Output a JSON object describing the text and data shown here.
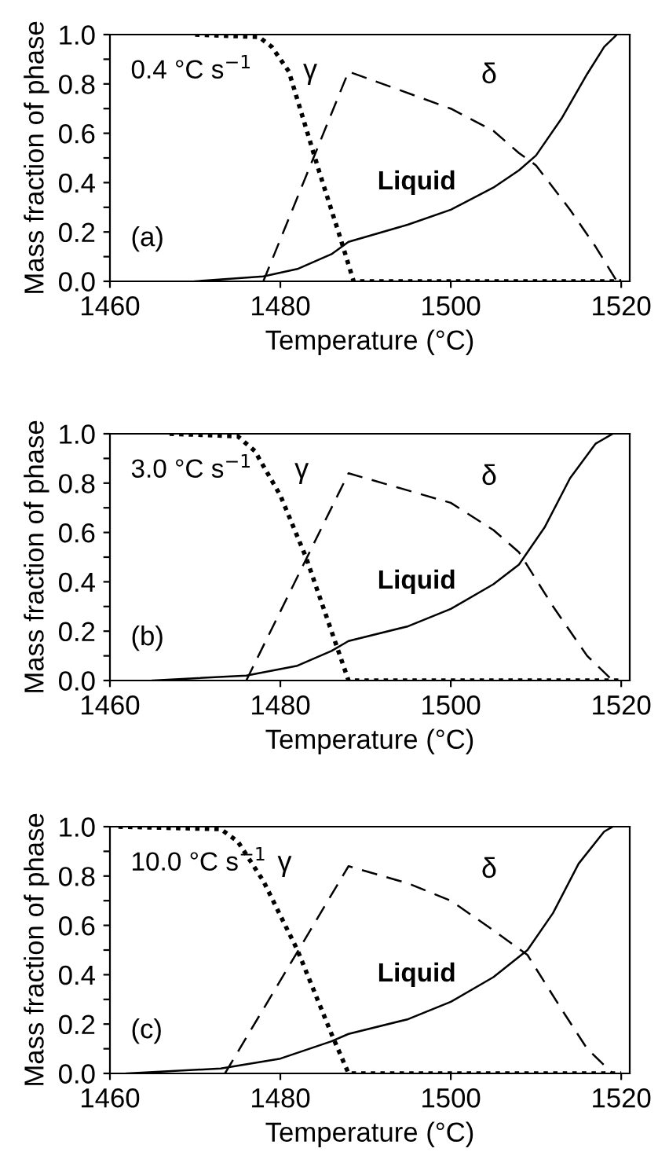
{
  "chart_data": [
    {
      "type": "line",
      "xlabel": "Temperature (°C)",
      "ylabel": "Mass fraction of phase",
      "xlim": [
        1460,
        1521
      ],
      "xticks": [
        1460,
        1480,
        1500,
        1520
      ],
      "ylim": [
        0,
        1
      ],
      "yticks": [
        {
          "value": 0,
          "label": "0.0"
        },
        {
          "value": 0.1,
          "label": null
        },
        {
          "value": 0.2,
          "label": "0.2"
        },
        {
          "value": 0.3,
          "label": null
        },
        {
          "value": 0.4,
          "label": "0.4"
        },
        {
          "value": 0.5,
          "label": null
        },
        {
          "value": 0.6,
          "label": "0.6"
        },
        {
          "value": 0.7,
          "label": null
        },
        {
          "value": 0.8,
          "label": "0.8"
        },
        {
          "value": 0.9,
          "label": null
        },
        {
          "value": 1.0,
          "label": "1.0"
        }
      ],
      "grid": false,
      "legend": false,
      "annotations": [
        "0.4 °C s$^{−1}$",
        "(a)"
      ],
      "series": [
        {
          "name": "γ",
          "color": "#000000",
          "line_style": "dotted",
          "x": [
            1470,
            1477.5,
            1479,
            1481,
            1484.6,
            1487,
            1488.6,
            1520
          ],
          "values": [
            1.0,
            0.99,
            0.95,
            0.85,
            0.44,
            0.18,
            0.0,
            0.0
          ]
        },
        {
          "name": "δ",
          "color": "#000000",
          "line_style": "dashed",
          "x": [
            1478,
            1488,
            1500,
            1505,
            1508,
            1510,
            1514,
            1517,
            1519.5
          ],
          "values": [
            0.0,
            0.85,
            0.7,
            0.61,
            0.52,
            0.47,
            0.29,
            0.14,
            0.0
          ]
        },
        {
          "name": "Liquid",
          "color": "#000000",
          "line_style": "solid",
          "x": [
            1470,
            1478,
            1482,
            1486,
            1488,
            1490,
            1495,
            1500,
            1505,
            1508,
            1510,
            1513,
            1516,
            1518,
            1519.5
          ],
          "values": [
            0.0,
            0.02,
            0.05,
            0.11,
            0.16,
            0.18,
            0.23,
            0.29,
            0.38,
            0.45,
            0.51,
            0.66,
            0.84,
            0.95,
            1.0
          ]
        }
      ]
    },
    {
      "type": "line",
      "xlabel": "Temperature (°C)",
      "ylabel": "Mass fraction of phase",
      "xlim": [
        1460,
        1521
      ],
      "xticks": [
        1460,
        1480,
        1500,
        1520
      ],
      "ylim": [
        0,
        1
      ],
      "yticks": [
        {
          "value": 0,
          "label": "0.0"
        },
        {
          "value": 0.1,
          "label": null
        },
        {
          "value": 0.2,
          "label": "0.2"
        },
        {
          "value": 0.3,
          "label": null
        },
        {
          "value": 0.4,
          "label": "0.4"
        },
        {
          "value": 0.5,
          "label": null
        },
        {
          "value": 0.6,
          "label": "0.6"
        },
        {
          "value": 0.7,
          "label": null
        },
        {
          "value": 0.8,
          "label": "0.8"
        },
        {
          "value": 0.9,
          "label": null
        },
        {
          "value": 1.0,
          "label": "1.0"
        }
      ],
      "grid": false,
      "legend": false,
      "annotations": [
        "3.0 °C s$^{−1}$",
        "(b)"
      ],
      "series": [
        {
          "name": "γ",
          "color": "#000000",
          "line_style": "dotted",
          "x": [
            1467,
            1475,
            1477,
            1480,
            1483,
            1486,
            1488,
            1520
          ],
          "values": [
            1.0,
            0.99,
            0.93,
            0.75,
            0.5,
            0.2,
            0.0,
            0.0
          ]
        },
        {
          "name": "δ",
          "color": "#000000",
          "line_style": "dashed",
          "x": [
            1476,
            1488,
            1500,
            1505,
            1508,
            1512,
            1516,
            1519
          ],
          "values": [
            0.0,
            0.84,
            0.72,
            0.61,
            0.52,
            0.3,
            0.1,
            0.0
          ]
        },
        {
          "name": "Liquid",
          "color": "#000000",
          "line_style": "solid",
          "x": [
            1465,
            1476,
            1482,
            1486,
            1488,
            1495,
            1500,
            1505,
            1508,
            1511,
            1514,
            1517,
            1519
          ],
          "values": [
            0.0,
            0.02,
            0.06,
            0.12,
            0.16,
            0.22,
            0.29,
            0.39,
            0.47,
            0.62,
            0.82,
            0.96,
            1.0
          ]
        }
      ]
    },
    {
      "type": "line",
      "xlabel": "Temperature (°C)",
      "ylabel": "Mass fraction of phase",
      "xlim": [
        1460,
        1521
      ],
      "xticks": [
        1460,
        1480,
        1500,
        1520
      ],
      "ylim": [
        0,
        1
      ],
      "yticks": [
        {
          "value": 0,
          "label": "0.0"
        },
        {
          "value": 0.1,
          "label": null
        },
        {
          "value": 0.2,
          "label": "0.2"
        },
        {
          "value": 0.3,
          "label": null
        },
        {
          "value": 0.4,
          "label": "0.4"
        },
        {
          "value": 0.5,
          "label": null
        },
        {
          "value": 0.6,
          "label": "0.6"
        },
        {
          "value": 0.7,
          "label": null
        },
        {
          "value": 0.8,
          "label": "0.8"
        },
        {
          "value": 0.9,
          "label": null
        },
        {
          "value": 1.0,
          "label": "1.0"
        }
      ],
      "grid": false,
      "legend": false,
      "annotations": [
        "10.0 °C s$^{−1}$",
        "(c)"
      ],
      "series": [
        {
          "name": "γ",
          "color": "#000000",
          "line_style": "dotted",
          "x": [
            1461,
            1473,
            1475,
            1478,
            1482,
            1486,
            1488,
            1520
          ],
          "values": [
            1.0,
            0.99,
            0.94,
            0.78,
            0.5,
            0.16,
            0.0,
            0.0
          ]
        },
        {
          "name": "δ",
          "color": "#000000",
          "line_style": "dashed",
          "x": [
            1473.5,
            1488,
            1495,
            1500,
            1505,
            1509,
            1513,
            1516,
            1519
          ],
          "values": [
            0.0,
            0.84,
            0.77,
            0.7,
            0.58,
            0.48,
            0.26,
            0.1,
            0.0
          ]
        },
        {
          "name": "Liquid",
          "color": "#000000",
          "line_style": "solid",
          "x": [
            1462,
            1473,
            1480,
            1486,
            1488,
            1495,
            1500,
            1505,
            1509,
            1512,
            1515,
            1518,
            1519
          ],
          "values": [
            0.0,
            0.02,
            0.06,
            0.13,
            0.16,
            0.22,
            0.29,
            0.39,
            0.5,
            0.65,
            0.85,
            0.98,
            1.0
          ]
        }
      ]
    }
  ]
}
